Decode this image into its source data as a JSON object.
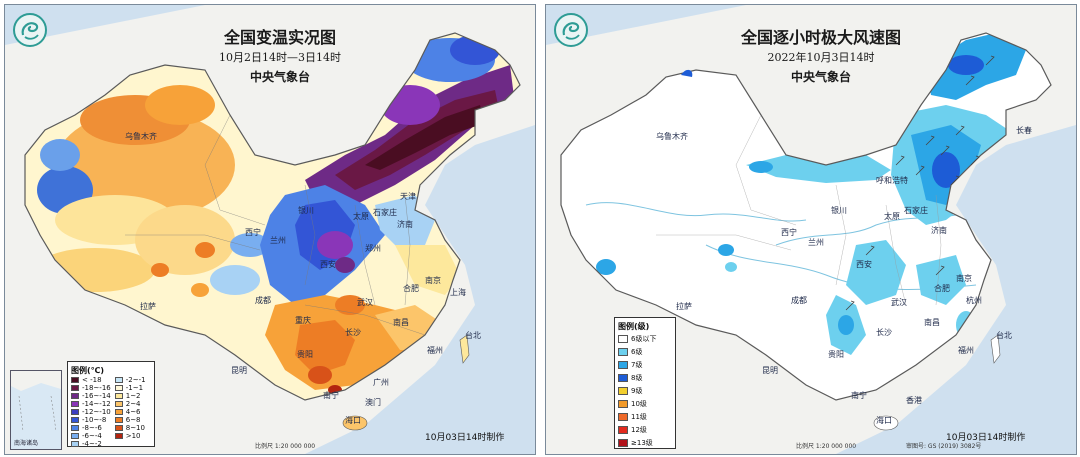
{
  "left": {
    "title": "全国变温实况图",
    "subtitle": "10月2日14时—3日14时",
    "agency": "中央气象台",
    "legend_title": "图例(℃)",
    "legend_col1": [
      {
        "label": "< -18",
        "color": "#4a0d22"
      },
      {
        "label": "-18~-16",
        "color": "#6a1845"
      },
      {
        "label": "-16~-14",
        "color": "#6e2a86"
      },
      {
        "label": "-14~-12",
        "color": "#8a36b8"
      },
      {
        "label": "-12~-10",
        "color": "#3d3fbf"
      },
      {
        "label": "-10~-8",
        "color": "#3355d6"
      },
      {
        "label": "-8~-6",
        "color": "#4d82e6"
      },
      {
        "label": "-6~-4",
        "color": "#79aef0"
      },
      {
        "label": "-4~-2",
        "color": "#a8d2f4"
      }
    ],
    "legend_col2": [
      {
        "label": "-2~-1",
        "color": "#c6e6f7"
      },
      {
        "label": "-1~1",
        "color": "#fff8d9"
      },
      {
        "label": "1~2",
        "color": "#fde89c"
      },
      {
        "label": "2~4",
        "color": "#fcc56a"
      },
      {
        "label": "4~6",
        "color": "#f7a239"
      },
      {
        "label": "6~8",
        "color": "#ed7d25"
      },
      {
        "label": "8~10",
        "color": "#d85219"
      },
      {
        "label": ">10",
        "color": "#b3240f"
      }
    ],
    "cities": {
      "urumqi": "乌鲁木齐",
      "lhasa": "拉萨",
      "lanzhou": "兰州",
      "yinchuan": "银川",
      "xining": "西宁",
      "taiyuan": "太原",
      "shijiazhuang": "石家庄",
      "tianjin": "天津",
      "jinan": "济南",
      "zhengzhou": "郑州",
      "xian": "西安",
      "chengdu": "成都",
      "chongqing": "重庆",
      "wuhan": "武汉",
      "hefei": "合肥",
      "nanjing": "南京",
      "shanghai": "上海",
      "changsha": "长沙",
      "nanchang": "南昌",
      "guiyang": "贵阳",
      "kunming": "昆明",
      "fuzhou": "福州",
      "taibei": "台北",
      "guangzhou": "广州",
      "nanning": "南宁",
      "macau": "澳门",
      "haikou": "海口"
    },
    "inset_label": "南海诸岛",
    "scale": "比例尺 1:20 000 000",
    "stamp": "10月03日14时制作"
  },
  "right": {
    "title": "全国逐小时极大风速图",
    "subtitle": "2022年10月3日14时",
    "agency": "中央气象台",
    "legend_title": "图例(级)",
    "legend_items": [
      {
        "label": "6级以下",
        "color": "#ffffff"
      },
      {
        "label": "6级",
        "color": "#6dd0ee"
      },
      {
        "label": "7级",
        "color": "#2ca6e6"
      },
      {
        "label": "8级",
        "color": "#1d5cd6"
      },
      {
        "label": "9级",
        "color": "#f2cf2e"
      },
      {
        "label": "10级",
        "color": "#f29a2a"
      },
      {
        "label": "11级",
        "color": "#ef6a2a"
      },
      {
        "label": "12级",
        "color": "#e22a1e"
      },
      {
        "label": "≥13级",
        "color": "#b2121a"
      }
    ],
    "cities": {
      "urumqi": "乌鲁木齐",
      "lhasa": "拉萨",
      "xining": "西宁",
      "lanzhou": "兰州",
      "yinchuan": "银川",
      "hohhot": "呼和浩特",
      "taiyuan": "太原",
      "shijiazhuang": "石家庄",
      "jinan": "济南",
      "changchun": "长春",
      "xian": "西安",
      "chengdu": "成都",
      "wuhan": "武汉",
      "hefei": "合肥",
      "nanjing": "南京",
      "hangzhou": "杭州",
      "changsha": "长沙",
      "nanchang": "南昌",
      "guiyang": "贵阳",
      "kunming": "昆明",
      "fuzhou": "福州",
      "taibei": "台北",
      "nanning": "南宁",
      "xianggang": "香港",
      "haikou": "海口"
    },
    "scale": "比例尺 1:20 000 000",
    "approval": "审图号: GS (2019) 3082号",
    "stamp": "10月03日14时制作"
  }
}
